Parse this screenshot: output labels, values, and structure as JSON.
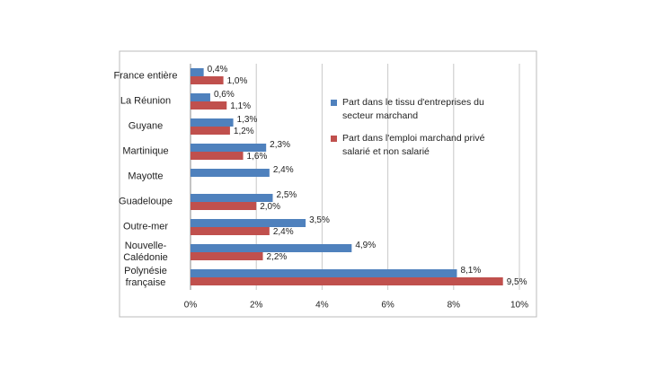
{
  "chart_data": {
    "type": "bar",
    "orientation": "horizontal",
    "categories": [
      "France entière",
      "La Réunion",
      "Guyane",
      "Martinique",
      "Mayotte",
      "Guadeloupe",
      "Outre-mer",
      "Nouvelle-Calédonie",
      "Polynésie française"
    ],
    "series": [
      {
        "name": "Part dans le tissu d'entreprises du secteur marchand",
        "color": "#4f81bd",
        "values": [
          0.4,
          0.6,
          1.3,
          2.3,
          2.4,
          2.5,
          3.5,
          4.9,
          8.1
        ],
        "value_labels": [
          "0,4%",
          "0,6%",
          "1,3%",
          "2,3%",
          "2,4%",
          "2,5%",
          "3,5%",
          "4,9%",
          "8,1%"
        ]
      },
      {
        "name": "Part dans l'emploi marchand privé salarié et non salarié",
        "color": "#c0504d",
        "values": [
          1.0,
          1.1,
          1.2,
          1.6,
          null,
          2.0,
          2.4,
          2.2,
          9.5
        ],
        "value_labels": [
          "1,0%",
          "1,1%",
          "1,2%",
          "1,6%",
          null,
          "2,0%",
          "2,4%",
          "2,2%",
          "9,5%"
        ]
      }
    ],
    "xlim": [
      0,
      10
    ],
    "xticks": [
      {
        "value": 0,
        "label": "0%"
      },
      {
        "value": 2,
        "label": "2%"
      },
      {
        "value": 4,
        "label": "4%"
      },
      {
        "value": 6,
        "label": "6%"
      },
      {
        "value": 8,
        "label": "8%"
      },
      {
        "value": 10,
        "label": "10%"
      }
    ],
    "grid": true,
    "legend": "right"
  }
}
